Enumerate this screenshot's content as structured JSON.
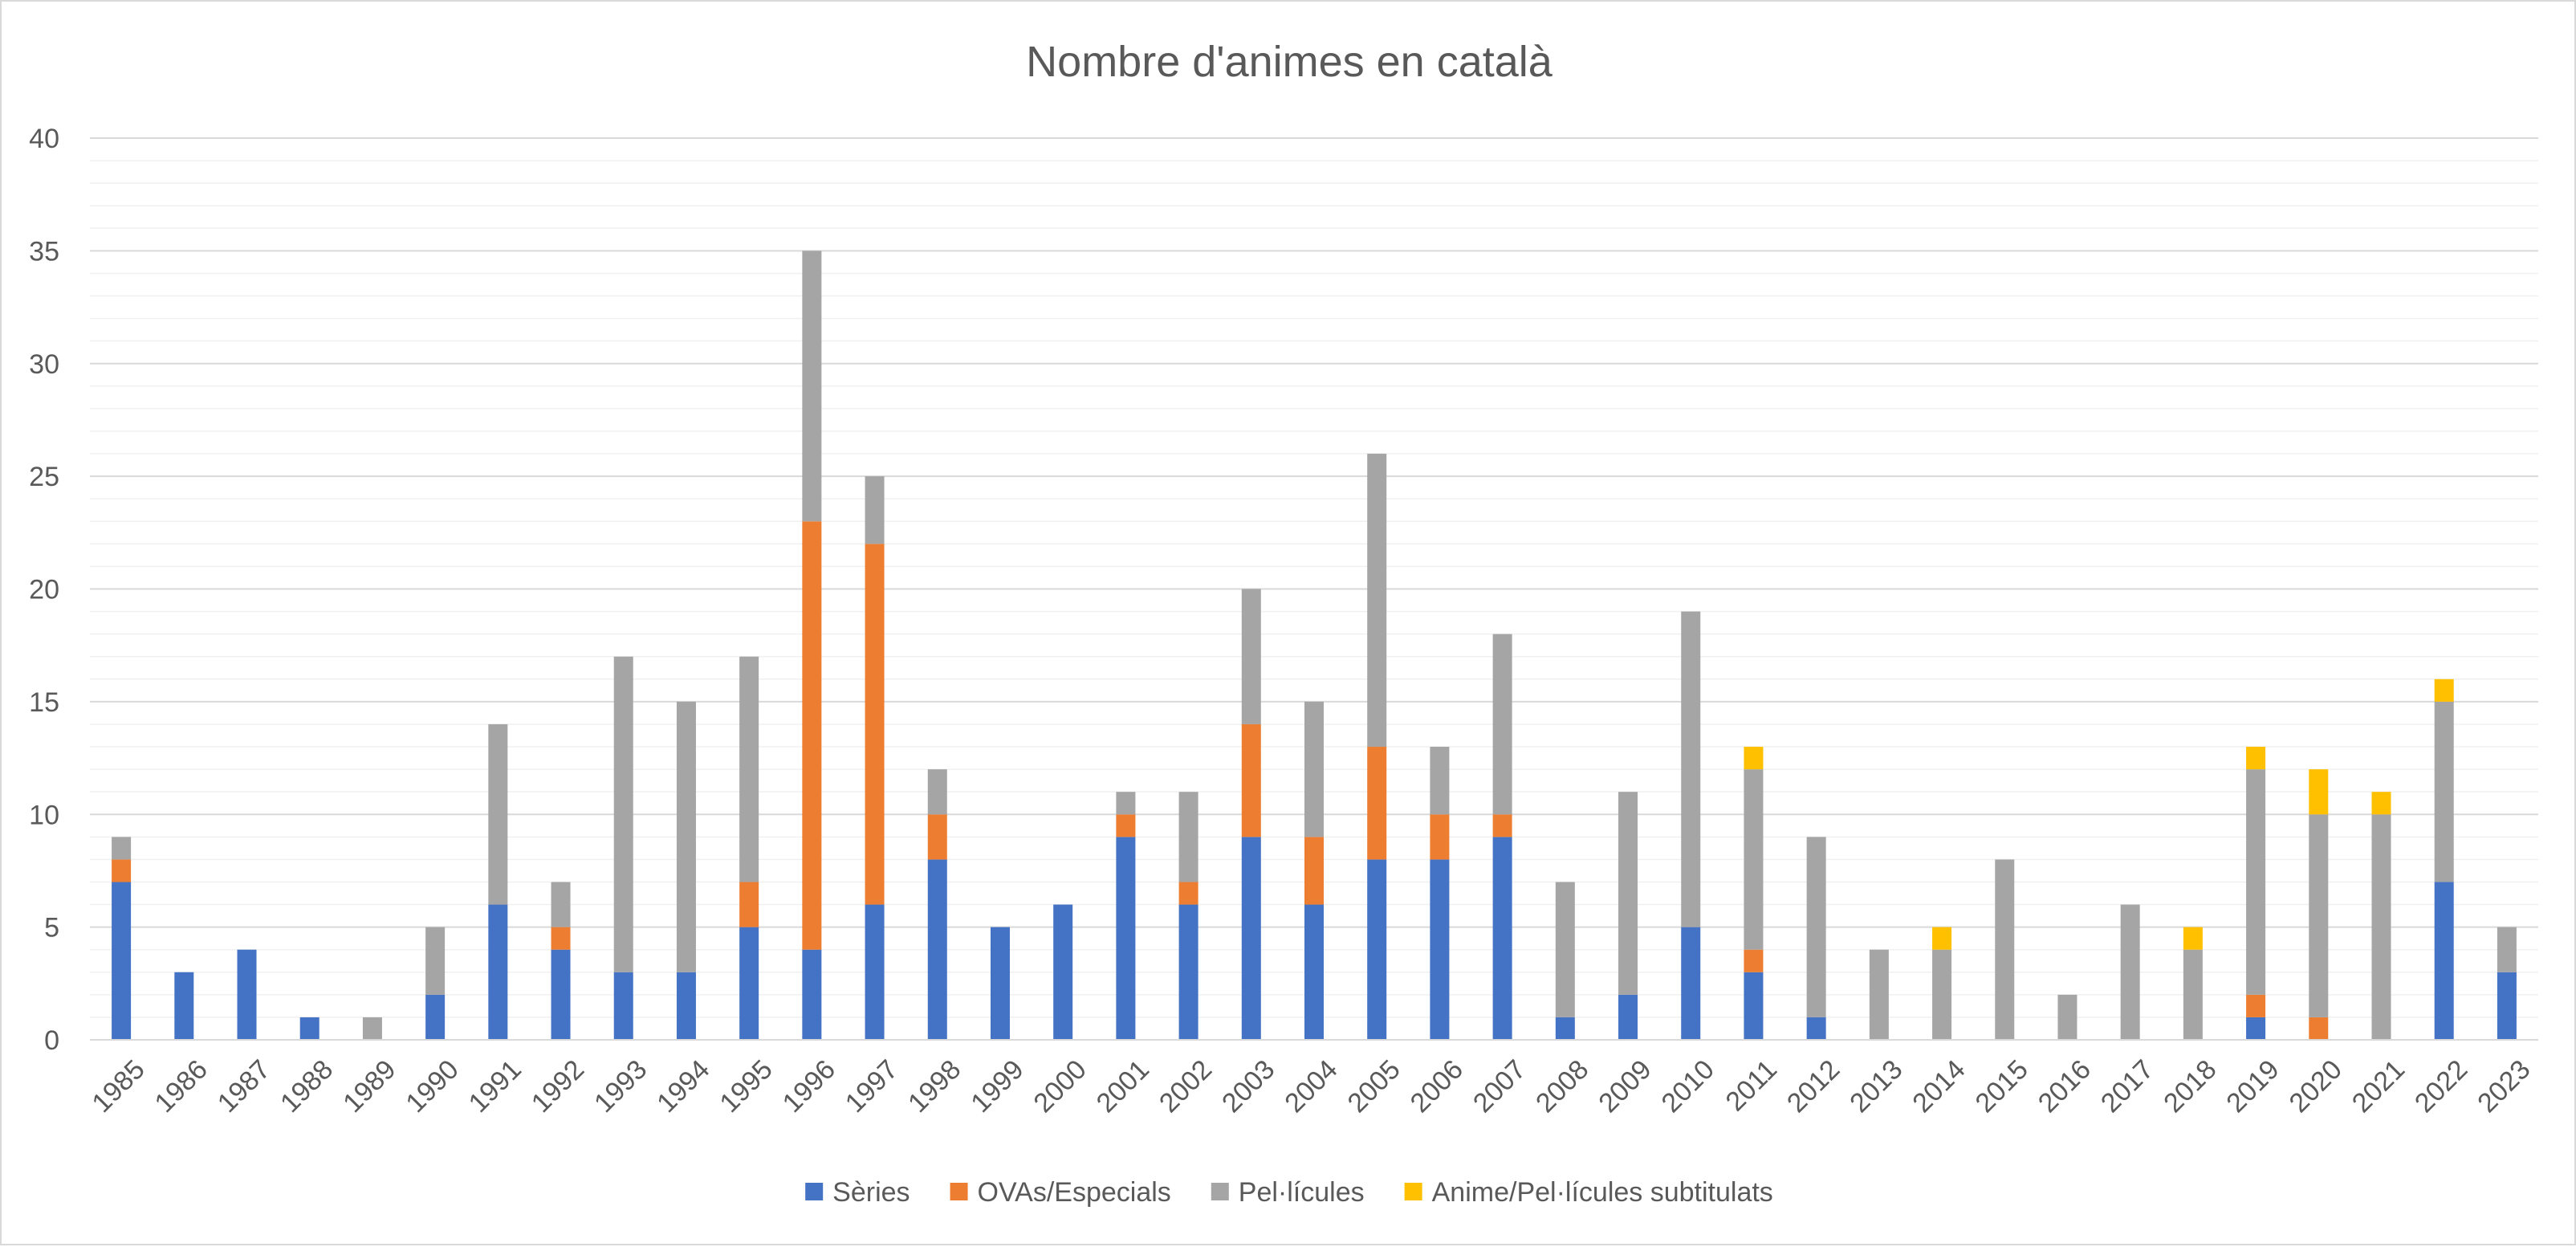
{
  "chart_data": {
    "type": "bar",
    "stacked": true,
    "title": "Nombre d'animes en català",
    "xlabel": "",
    "ylabel": "",
    "ylim": [
      0,
      40
    ],
    "yticks": [
      0,
      5,
      10,
      15,
      20,
      25,
      30,
      35,
      40
    ],
    "ytick_labels": [
      "0",
      "5",
      "10",
      "15",
      "20",
      "25",
      "30",
      "35",
      "40"
    ],
    "grid": true,
    "legend_position": "bottom",
    "categories": [
      "1985",
      "1986",
      "1987",
      "1988",
      "1989",
      "1990",
      "1991",
      "1992",
      "1993",
      "1994",
      "1995",
      "1996",
      "1997",
      "1998",
      "1999",
      "2000",
      "2001",
      "2002",
      "2003",
      "2004",
      "2005",
      "2006",
      "2007",
      "2008",
      "2009",
      "2010",
      "2011",
      "2012",
      "2013",
      "2014",
      "2015",
      "2016",
      "2017",
      "2018",
      "2019",
      "2020",
      "2021",
      "2022",
      "2023"
    ],
    "series": [
      {
        "name": "Sèries",
        "color": "#4472C4",
        "values": [
          7,
          3,
          4,
          1,
          0,
          2,
          6,
          4,
          3,
          3,
          5,
          4,
          6,
          8,
          5,
          6,
          9,
          6,
          9,
          6,
          8,
          8,
          9,
          1,
          2,
          5,
          3,
          1,
          0,
          0,
          0,
          0,
          0,
          0,
          1,
          0,
          0,
          7,
          3
        ]
      },
      {
        "name": "OVAs/Especials",
        "color": "#ED7D31",
        "values": [
          1,
          0,
          0,
          0,
          0,
          0,
          0,
          1,
          0,
          0,
          2,
          19,
          16,
          2,
          0,
          0,
          1,
          1,
          5,
          3,
          5,
          2,
          1,
          0,
          0,
          0,
          1,
          0,
          0,
          0,
          0,
          0,
          0,
          0,
          1,
          1,
          0,
          0,
          0
        ]
      },
      {
        "name": "Pel·lícules",
        "color": "#A5A5A5",
        "values": [
          1,
          0,
          0,
          0,
          1,
          3,
          8,
          2,
          14,
          12,
          10,
          12,
          3,
          2,
          0,
          0,
          1,
          4,
          6,
          6,
          13,
          3,
          8,
          6,
          9,
          14,
          8,
          8,
          4,
          4,
          8,
          2,
          6,
          4,
          10,
          9,
          10,
          8,
          2
        ]
      },
      {
        "name": "Anime/Pel·lícules subtitulats",
        "color": "#FFC000",
        "values": [
          0,
          0,
          0,
          0,
          0,
          0,
          0,
          0,
          0,
          0,
          0,
          0,
          0,
          0,
          0,
          0,
          0,
          0,
          0,
          0,
          0,
          0,
          0,
          0,
          0,
          0,
          1,
          0,
          0,
          1,
          0,
          0,
          0,
          1,
          1,
          2,
          1,
          1,
          0
        ]
      }
    ]
  }
}
